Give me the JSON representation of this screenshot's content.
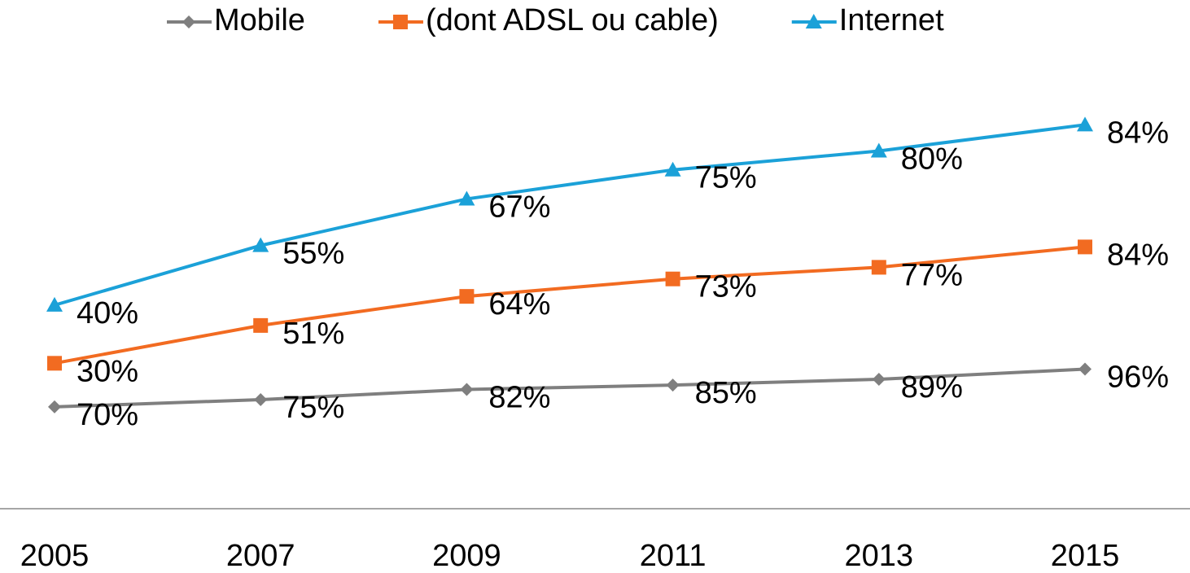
{
  "chart_data": {
    "type": "line",
    "stacked": true,
    "categories": [
      "2005",
      "2007",
      "2009",
      "2011",
      "2013",
      "2015"
    ],
    "series": [
      {
        "name": "Mobile",
        "color": "#7f7f7f",
        "marker": "diamond",
        "values": [
          70,
          75,
          82,
          85,
          89,
          96
        ],
        "value_labels": [
          "70%",
          "75%",
          "82%",
          "85%",
          "89%",
          "96%"
        ]
      },
      {
        "name": "(dont ADSL ou cable)",
        "color": "#f26b21",
        "marker": "square",
        "values": [
          30,
          51,
          64,
          73,
          77,
          84
        ],
        "value_labels": [
          "30%",
          "51%",
          "64%",
          "73%",
          "77%",
          "84%"
        ]
      },
      {
        "name": "Internet",
        "color": "#1ba1d8",
        "marker": "triangle",
        "values": [
          40,
          55,
          67,
          75,
          80,
          84
        ],
        "value_labels": [
          "40%",
          "55%",
          "67%",
          "75%",
          "80%",
          "84%"
        ]
      }
    ],
    "ylim": [
      0,
      300
    ],
    "legend": "top",
    "grid": false
  }
}
